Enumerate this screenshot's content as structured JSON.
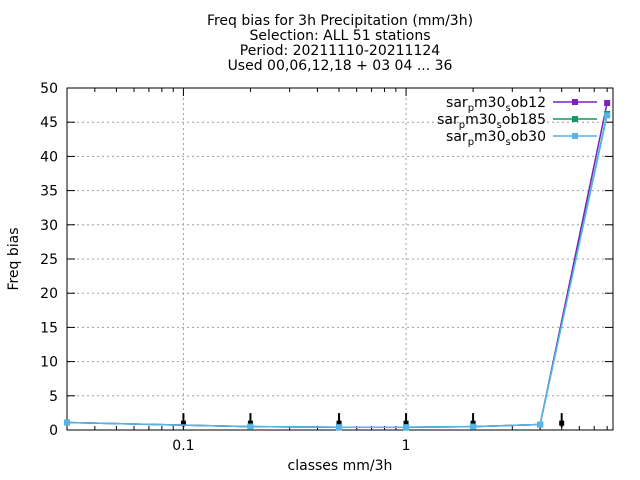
{
  "chart_data": {
    "type": "line",
    "title": [
      "Freq bias  for 3h Precipitation (mm/3h)",
      "Selection: ALL      51 stations",
      "Period: 20211110-20211124",
      "Used 00,06,12,18 + 03 04 ... 36"
    ],
    "xlabel": "classes mm/3h",
    "ylabel": "Freq bias",
    "xscale": "log",
    "xlim": [
      0.03,
      8.5
    ],
    "ylim": [
      0,
      50
    ],
    "yticks": [
      0,
      5,
      10,
      15,
      20,
      25,
      30,
      35,
      40,
      45,
      50
    ],
    "xticks": [
      {
        "value": 0.1,
        "label": "0.1"
      },
      {
        "value": 1,
        "label": "1"
      }
    ],
    "grid": true,
    "legend_position": "top-right",
    "series": [
      {
        "name": "sar_pm30_sob12",
        "name_parts": [
          "sar",
          "p",
          "m30",
          "s",
          "ob12"
        ],
        "color": "#7B1FBF",
        "x": [
          0.03,
          0.2,
          0.5,
          1.0,
          2.0,
          4.0,
          8.0
        ],
        "y": [
          1.1,
          0.5,
          0.4,
          0.4,
          0.5,
          0.8,
          47.8
        ]
      },
      {
        "name": "sar_pm30_sob185",
        "name_parts": [
          "sar",
          "p",
          "m30",
          "s",
          "ob185"
        ],
        "color": "#0E9B5E",
        "x": [
          0.03,
          0.2,
          0.5,
          1.0,
          2.0,
          4.0,
          8.0
        ],
        "y": [
          1.1,
          0.5,
          0.4,
          0.4,
          0.5,
          0.8,
          46.2
        ]
      },
      {
        "name": "sar_pm30_sob30",
        "name_parts": [
          "sar",
          "p",
          "m30",
          "s",
          "ob30"
        ],
        "color": "#56B4E9",
        "x": [
          0.03,
          0.2,
          0.5,
          1.0,
          2.0,
          4.0,
          8.0
        ],
        "y": [
          1.1,
          0.5,
          0.4,
          0.4,
          0.5,
          0.8,
          46.0
        ]
      }
    ],
    "errorbar_markers": {
      "x": [
        0.1,
        0.2,
        0.5,
        1.0,
        2.0,
        5.0
      ],
      "y": [
        1.0,
        1.0,
        1.0,
        1.0,
        1.0,
        1.0
      ]
    }
  }
}
